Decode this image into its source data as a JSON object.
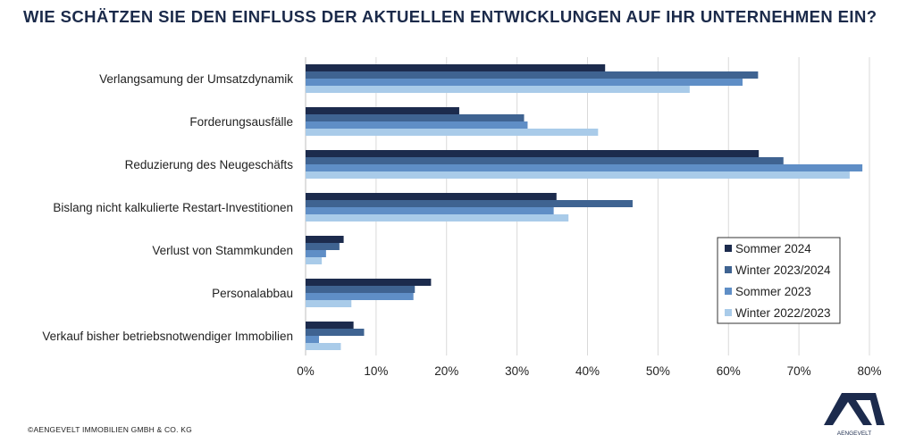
{
  "header": {
    "title": "WIE SCHÄTZEN SIE DEN EINFLUSS DER AKTUELLEN ENTWICKLUNGEN AUF IHR UNTERNEHMEN EIN?"
  },
  "footer": {
    "copyright": "©AENGEVELT IMMOBILIEN GMBH & CO. KG",
    "logo_text": "AENGEVELT"
  },
  "colors": {
    "title": "#1b2a4a",
    "grid": "#d9d9d9"
  },
  "chart_data": {
    "type": "bar",
    "orientation": "horizontal",
    "categories": [
      "Verlangsamung der Umsatzdynamik",
      "Forderungsausfälle",
      "Reduzierung des Neugeschäfts",
      "Bislang nicht kalkulierte Restart-Investitionen",
      "Verlust von Stammkunden",
      "Personalabbau",
      "Verkauf bisher betriebsnotwendiger Immobilien"
    ],
    "series": [
      {
        "name": "Sommer 2024",
        "color": "#1c2b4d",
        "values": [
          42.5,
          21.8,
          64.3,
          35.6,
          5.4,
          17.8,
          6.8
        ]
      },
      {
        "name": "Winter 2023/2024",
        "color": "#3f6391",
        "values": [
          64.2,
          31.0,
          67.8,
          46.4,
          4.8,
          15.5,
          8.3
        ]
      },
      {
        "name": "Sommer 2023",
        "color": "#5f8ec6",
        "values": [
          62.0,
          31.5,
          79.0,
          35.2,
          2.9,
          15.3,
          1.9
        ]
      },
      {
        "name": "Winter 2022/2023",
        "color": "#a9cbe9",
        "values": [
          54.5,
          41.5,
          77.2,
          37.3,
          2.3,
          6.5,
          5.0
        ]
      }
    ],
    "xlim": [
      0,
      80
    ],
    "xticks": [
      0,
      10,
      20,
      30,
      40,
      50,
      60,
      70,
      80
    ],
    "tick_suffix": "%",
    "grid": true,
    "legend_position": "bottom-right"
  }
}
